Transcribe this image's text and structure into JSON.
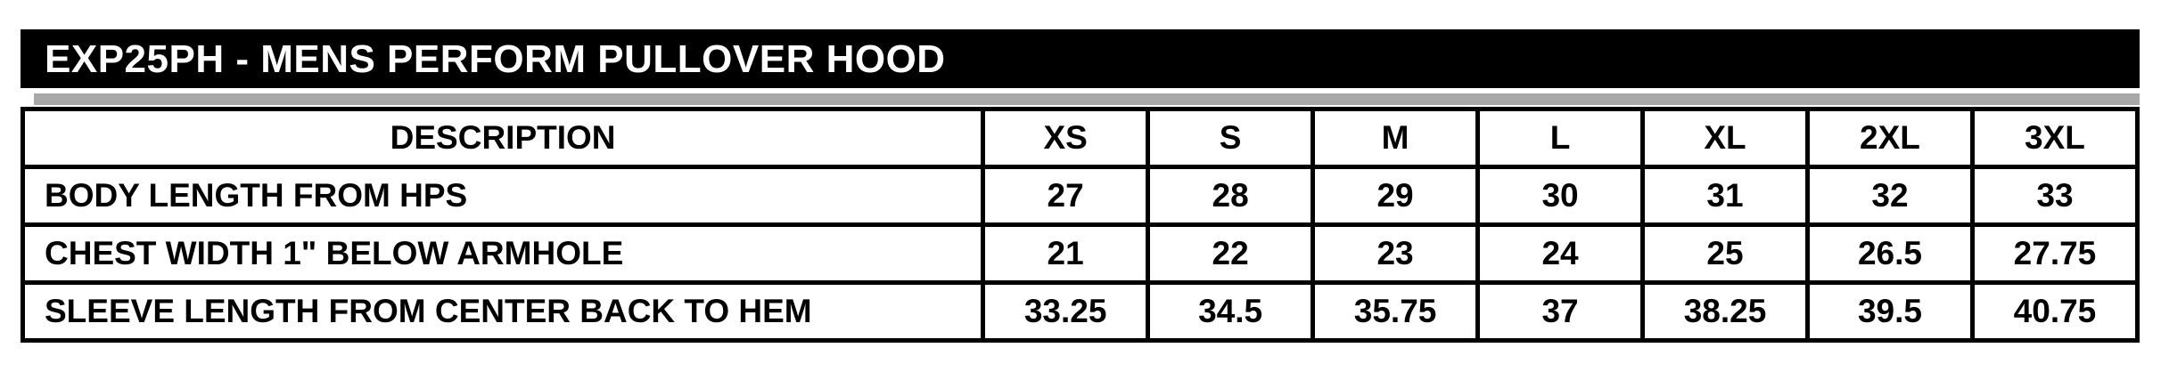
{
  "title_bar": {
    "text": "EXP25PH - MENS PERFORM PULLOVER HOOD",
    "background": "#000000",
    "text_color": "#ffffff"
  },
  "separator": {
    "color": "#a8a8a8"
  },
  "size_chart": {
    "border_color": "#000000",
    "header": {
      "description_label": "DESCRIPTION",
      "sizes": [
        "XS",
        "S",
        "M",
        "L",
        "XL",
        "2XL",
        "3XL"
      ]
    },
    "rows": [
      {
        "label": "BODY LENGTH FROM HPS",
        "values": [
          "27",
          "28",
          "29",
          "30",
          "31",
          "32",
          "33"
        ]
      },
      {
        "label": "CHEST WIDTH 1\" BELOW ARMHOLE",
        "values": [
          "21",
          "22",
          "23",
          "24",
          "25",
          "26.5",
          "27.75"
        ]
      },
      {
        "label": "SLEEVE LENGTH FROM CENTER BACK TO HEM",
        "values": [
          "33.25",
          "34.5",
          "35.75",
          "37",
          "38.25",
          "39.5",
          "40.75"
        ]
      }
    ]
  }
}
